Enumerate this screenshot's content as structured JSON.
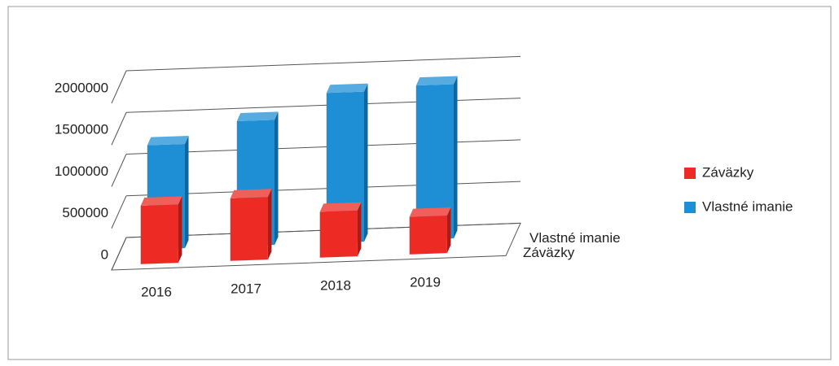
{
  "chart_data": {
    "type": "bar3d",
    "categories": [
      "2016",
      "2017",
      "2018",
      "2019"
    ],
    "series": [
      {
        "name": "Záväzky",
        "color": "#ee2a24",
        "values": [
          700000,
          750000,
          550000,
          450000
        ]
      },
      {
        "name": "Vlastné imanie",
        "color": "#1e8fd5",
        "values": [
          1250000,
          1500000,
          1800000,
          1850000
        ]
      }
    ],
    "ylim": [
      0,
      2000000
    ],
    "yticks": [
      0,
      500000,
      1000000,
      1500000,
      2000000
    ],
    "grid": true,
    "legend": "right"
  }
}
